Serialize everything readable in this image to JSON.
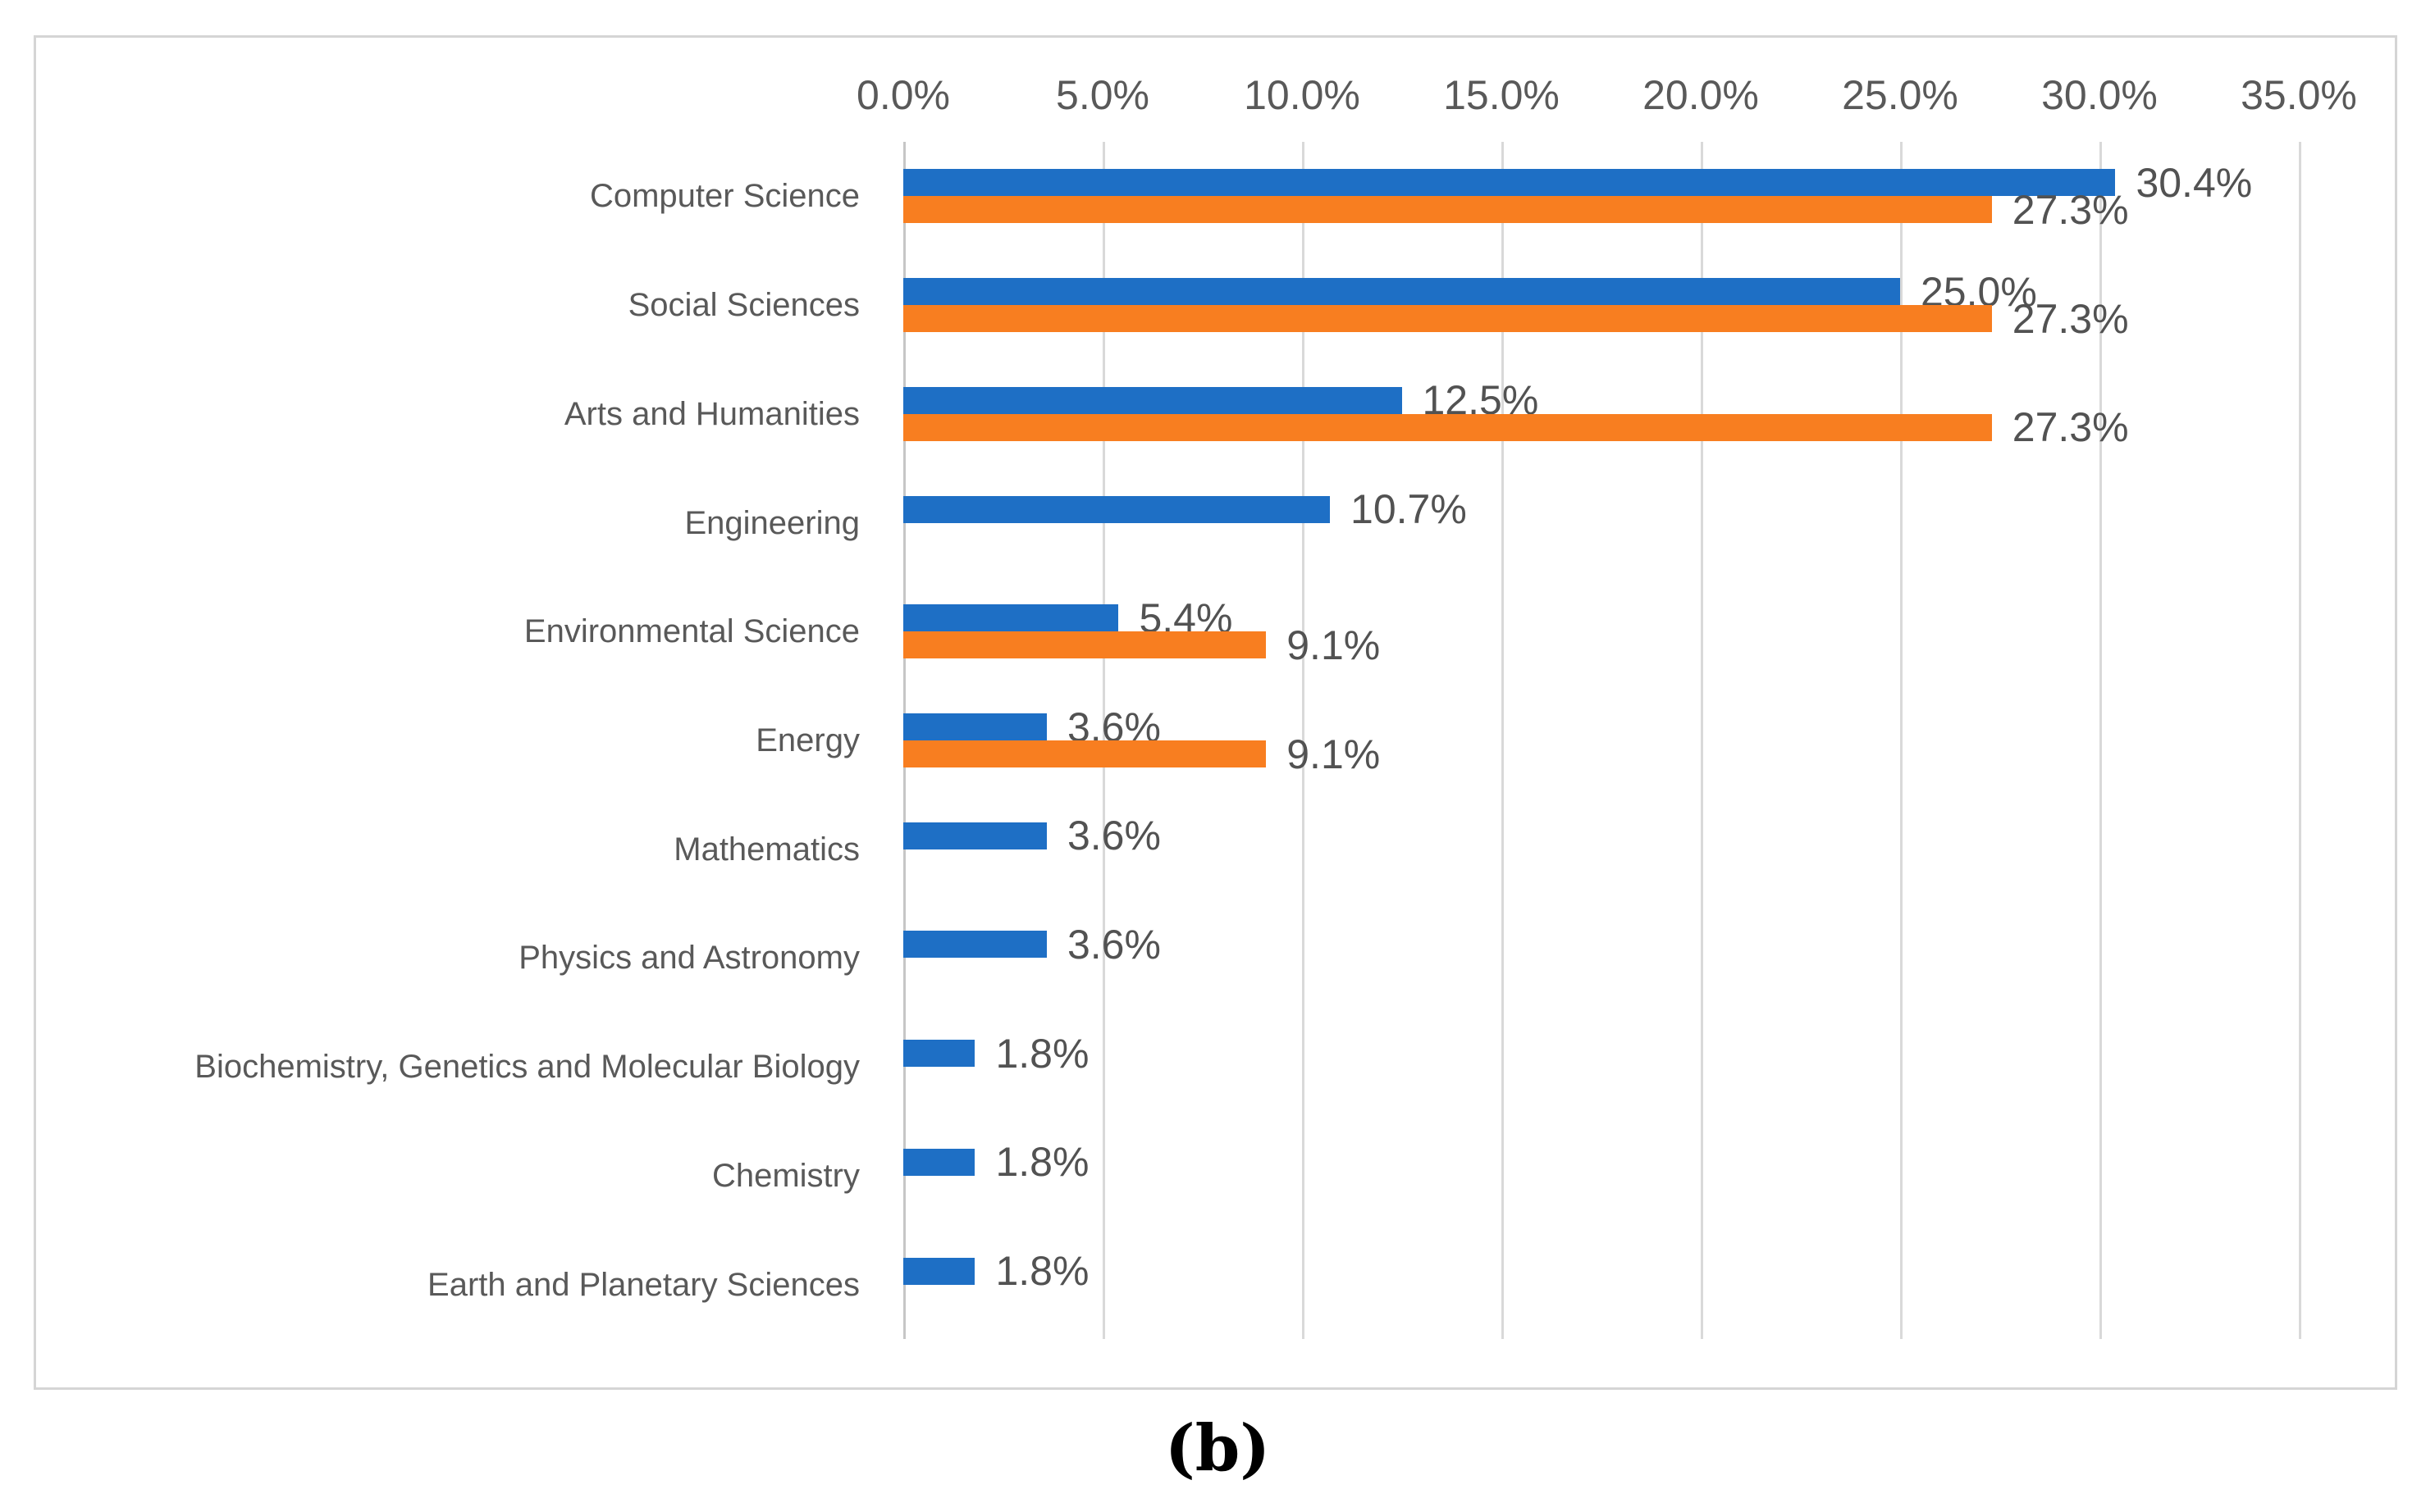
{
  "figure": {
    "caption": "(b)"
  },
  "colors": {
    "series_blue": "#1e6fc5",
    "series_orange": "#f87e20",
    "gridline": "#d9d9d9",
    "axis_line": "#c6c6c6",
    "tick_text": "#595959",
    "category_text": "#595959",
    "data_label_text": "#525252",
    "chart_border": "#d5d5d5"
  },
  "chart_data": {
    "type": "bar",
    "orientation": "horizontal",
    "title": "",
    "xlabel": "",
    "ylabel": "",
    "xlim": [
      0,
      35
    ],
    "grid": true,
    "legend": "none",
    "x_ticks": [
      "0.0%",
      "5.0%",
      "10.0%",
      "15.0%",
      "20.0%",
      "25.0%",
      "30.0%",
      "35.0%"
    ],
    "categories": [
      "Computer Science",
      "Social Sciences",
      "Arts and Humanities",
      "Engineering",
      "Environmental Science",
      "Energy",
      "Mathematics",
      "Physics and Astronomy",
      "Biochemistry, Genetics and Molecular Biology",
      "Chemistry",
      "Earth and Planetary Sciences"
    ],
    "series": [
      {
        "name": "series-blue",
        "color": "#1e6fc5",
        "values": [
          30.4,
          25.0,
          12.5,
          10.7,
          5.4,
          3.6,
          3.6,
          3.6,
          1.8,
          1.8,
          1.8
        ]
      },
      {
        "name": "series-orange",
        "color": "#f87e20",
        "values": [
          27.3,
          27.3,
          27.3,
          null,
          9.1,
          9.1,
          null,
          null,
          null,
          null,
          null
        ]
      }
    ],
    "data_labels": {
      "format": "one_decimal_percent",
      "series_blue": [
        "30.4%",
        "25.0%",
        "12.5%",
        "10.7%",
        "5.4%",
        "3.6%",
        "3.6%",
        "3.6%",
        "1.8%",
        "1.8%",
        "1.8%"
      ],
      "series_orange": [
        "27.3%",
        "27.3%",
        "27.3%",
        null,
        "9.1%",
        "9.1%",
        null,
        null,
        null,
        null,
        null
      ]
    }
  }
}
